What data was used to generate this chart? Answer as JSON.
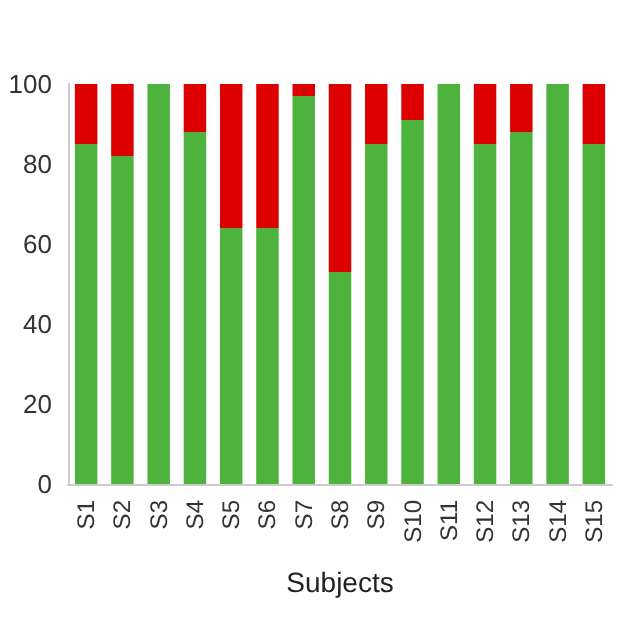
{
  "chart_data": {
    "type": "bar",
    "stacked": true,
    "xlabel": "Subjects",
    "categories": [
      "S1",
      "S2",
      "S3",
      "S4",
      "S5",
      "S6",
      "S7",
      "S8",
      "S9",
      "S10",
      "S11",
      "S12",
      "S13",
      "S14",
      "S15"
    ],
    "series": [
      {
        "color": "#4db33d",
        "values": [
          85,
          82,
          100,
          88,
          64,
          64,
          97,
          53,
          85,
          91,
          100,
          85,
          88,
          100,
          85
        ]
      },
      {
        "color": "#dd0000",
        "values": [
          15,
          18,
          0,
          12,
          36,
          36,
          3,
          47,
          15,
          9,
          0,
          15,
          12,
          0,
          15
        ]
      }
    ],
    "ylim": [
      0,
      100
    ],
    "yticks": [
      0,
      20,
      40,
      60,
      80,
      100
    ],
    "grid": false,
    "legend": false
  }
}
